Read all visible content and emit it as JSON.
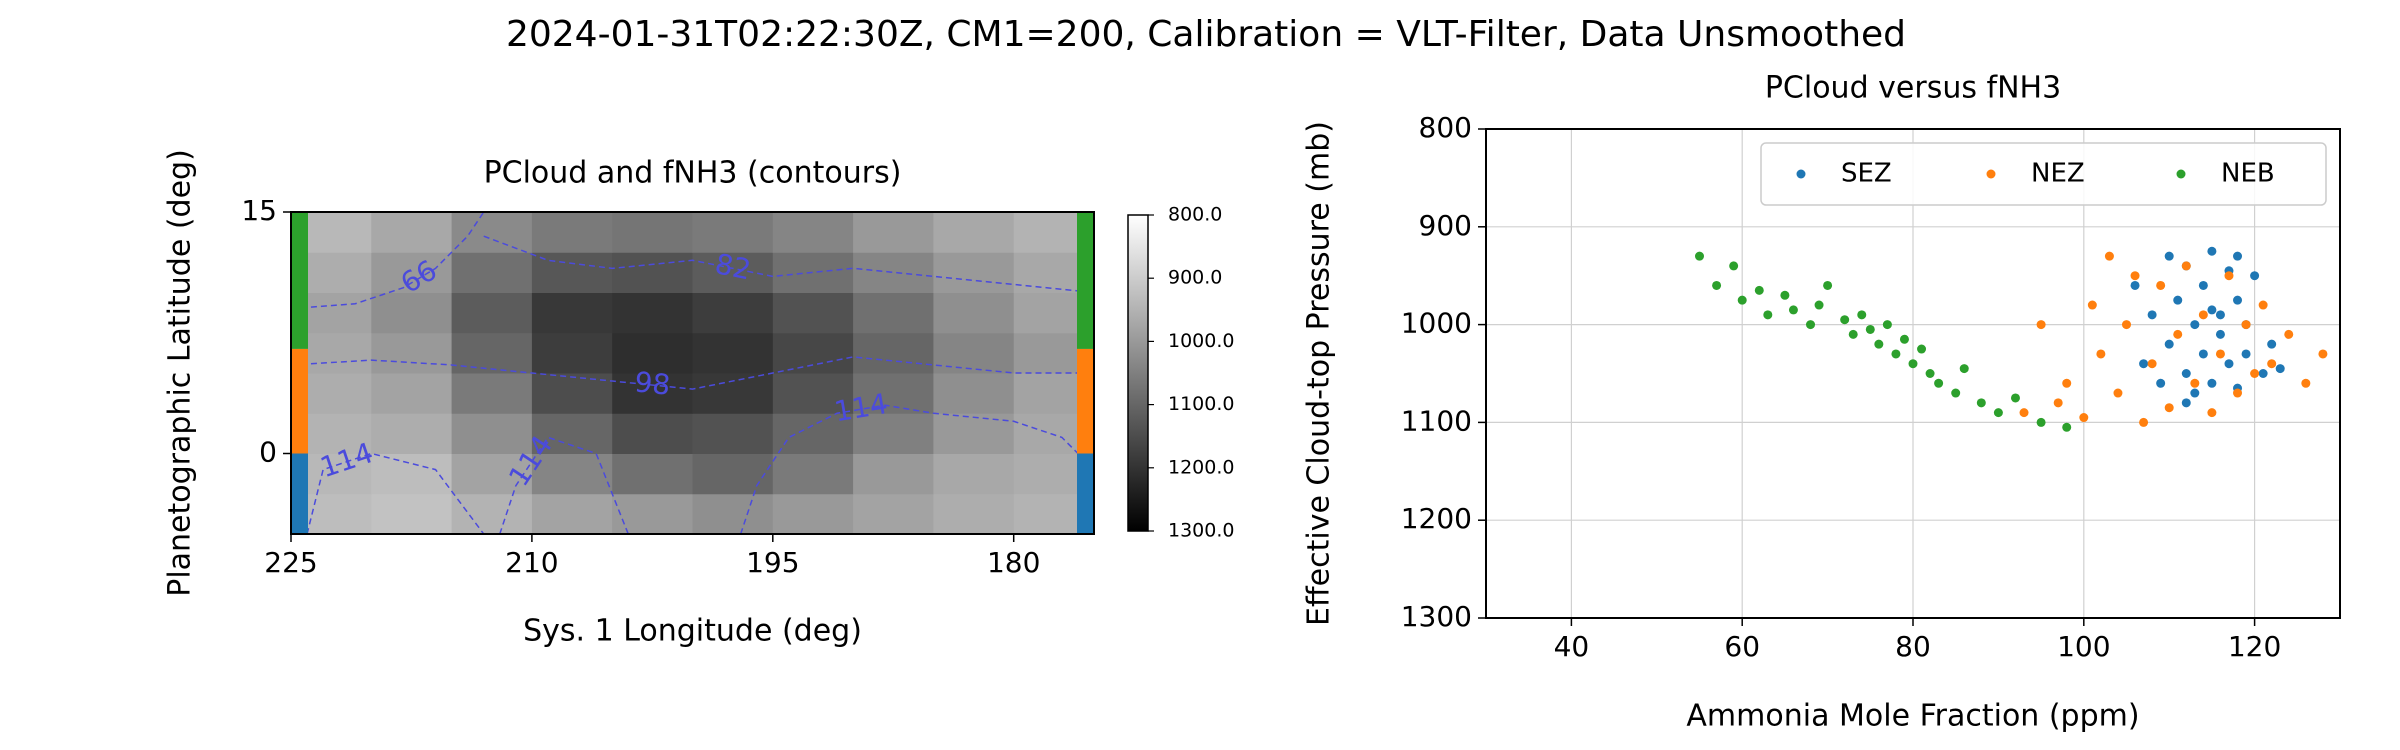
{
  "title": "2024-01-31T02:22:30Z, CM1=200, Calibration = VLT-Filter, Data Unsmoothed",
  "chart_data": [
    {
      "type": "heatmap",
      "title": "PCloud and fNH3 (contours)",
      "x_label": "Sys. 1 Longitude (deg)",
      "y_label": "Planetographic Latitude (deg)",
      "xlim": [
        225,
        175
      ],
      "xticks": [
        225,
        210,
        195,
        180
      ],
      "ylim": [
        -5,
        15
      ],
      "yticks": [
        0,
        15
      ],
      "x": [
        222.5,
        217.5,
        212.5,
        207.5,
        202.5,
        197.5,
        192.5,
        187.5,
        182.5,
        177.5
      ],
      "y": [
        -3.75,
        -1.25,
        1.25,
        3.75,
        6.25,
        8.75,
        11.25,
        13.75
      ],
      "z": [
        [
          930,
          920,
          950,
          980,
          1000,
          1020,
          1000,
          980,
          960,
          950
        ],
        [
          940,
          930,
          980,
          1040,
          1080,
          1100,
          1060,
          1000,
          970,
          960
        ],
        [
          950,
          960,
          1020,
          1100,
          1150,
          1140,
          1100,
          1050,
          1000,
          970
        ],
        [
          960,
          980,
          1060,
          1150,
          1200,
          1190,
          1140,
          1080,
          1020,
          980
        ],
        [
          970,
          1000,
          1100,
          1180,
          1210,
          1200,
          1160,
          1100,
          1040,
          1000
        ],
        [
          980,
          1020,
          1120,
          1190,
          1200,
          1180,
          1140,
          1080,
          1020,
          980
        ],
        [
          960,
          1000,
          1080,
          1130,
          1140,
          1120,
          1080,
          1040,
          1000,
          970
        ],
        [
          940,
          970,
          1030,
          1060,
          1070,
          1060,
          1040,
          1000,
          970,
          950
        ]
      ],
      "clim": [
        800,
        1300
      ],
      "cticks": [
        {
          "value": 800,
          "label": "800.0"
        },
        {
          "value": 900,
          "label": "900.0"
        },
        {
          "value": 1000,
          "label": "1000.0"
        },
        {
          "value": 1100,
          "label": "1100.0"
        },
        {
          "value": 1200,
          "label": "1200.0"
        },
        {
          "value": 1300,
          "label": "1300.0"
        }
      ],
      "contour_color": "#4b4bdc",
      "contours": [
        {
          "level": 66,
          "x": [
            225,
            221,
            218,
            216,
            214,
            213
          ],
          "y": [
            9,
            9.3,
            10.3,
            11.5,
            13.5,
            15
          ]
        },
        {
          "level": 82,
          "x": [
            213,
            209,
            205,
            200,
            195,
            190,
            185,
            180,
            175
          ],
          "y": [
            13.5,
            12,
            11.5,
            12,
            11,
            11.5,
            11,
            10.5,
            10
          ]
        },
        {
          "level": 98,
          "x": [
            225,
            220,
            215,
            210,
            205,
            200,
            195,
            190,
            185,
            180,
            175
          ],
          "y": [
            5.5,
            5.8,
            5.5,
            5,
            4.5,
            4,
            5,
            6,
            5.5,
            5,
            5
          ]
        },
        {
          "level": 114,
          "x": [
            224,
            223,
            220,
            216,
            213
          ],
          "y": [
            -5,
            -1,
            0,
            -1,
            -5
          ]
        },
        {
          "level": 114,
          "x": [
            212,
            211,
            209,
            206,
            204
          ],
          "y": [
            -5,
            -2,
            1,
            0,
            -5
          ]
        },
        {
          "level": 114,
          "x": [
            197,
            196,
            194,
            191,
            188,
            185,
            180,
            177,
            175
          ],
          "y": [
            -5,
            -2,
            1,
            2.5,
            3,
            2.5,
            2,
            1,
            -1
          ]
        }
      ],
      "zones": [
        {
          "color": "#1f77b4",
          "ylim": [
            -5,
            0
          ]
        },
        {
          "color": "#ff7f0e",
          "ylim": [
            0,
            6.5
          ]
        },
        {
          "color": "#2ca02c",
          "ylim": [
            6.5,
            15
          ]
        }
      ]
    },
    {
      "type": "scatter",
      "title": "PCloud versus fNH3",
      "x_label": "Ammonia Mole Fraction (ppm)",
      "y_label": "Effective Cloud-top Pressure (mb)",
      "xlim": [
        30,
        130
      ],
      "xticks": [
        40,
        60,
        80,
        100,
        120
      ],
      "ylim": [
        1300,
        800
      ],
      "yticks": [
        800,
        900,
        1000,
        1100,
        1200,
        1300
      ],
      "grid": true,
      "legend": "upper right",
      "series": [
        {
          "name": "SEZ",
          "color": "#1f77b4",
          "x": [
            106,
            107,
            108,
            109,
            110,
            110,
            111,
            112,
            112,
            113,
            113,
            114,
            114,
            115,
            115,
            116,
            116,
            117,
            117,
            118,
            118,
            119,
            119,
            120,
            121,
            122,
            123,
            112,
            115,
            118
          ],
          "values": [
            960,
            1040,
            990,
            1060,
            930,
            1020,
            975,
            1050,
            940,
            1000,
            1070,
            960,
            1030,
            925,
            1060,
            990,
            1010,
            945,
            1040,
            975,
            1065,
            1000,
            1030,
            950,
            1050,
            1020,
            1045,
            1080,
            985,
            930
          ]
        },
        {
          "name": "NEZ",
          "color": "#ff7f0e",
          "x": [
            93,
            95,
            97,
            98,
            100,
            101,
            102,
            103,
            104,
            105,
            106,
            107,
            108,
            109,
            110,
            111,
            112,
            113,
            114,
            115,
            116,
            117,
            118,
            119,
            120,
            121,
            122,
            124,
            126,
            128
          ],
          "values": [
            1090,
            1000,
            1080,
            1060,
            1095,
            980,
            1030,
            930,
            1070,
            1000,
            950,
            1100,
            1040,
            960,
            1085,
            1010,
            940,
            1060,
            990,
            1090,
            1030,
            950,
            1070,
            1000,
            1050,
            980,
            1040,
            1010,
            1060,
            1030
          ]
        },
        {
          "name": "NEB",
          "color": "#2ca02c",
          "x": [
            55,
            57,
            59,
            60,
            62,
            63,
            65,
            66,
            68,
            69,
            70,
            72,
            73,
            74,
            75,
            76,
            77,
            78,
            79,
            80,
            81,
            82,
            83,
            85,
            86,
            88,
            90,
            92,
            95,
            98
          ],
          "values": [
            930,
            960,
            940,
            975,
            965,
            990,
            970,
            985,
            1000,
            980,
            960,
            995,
            1010,
            990,
            1005,
            1020,
            1000,
            1030,
            1015,
            1040,
            1025,
            1050,
            1060,
            1070,
            1045,
            1080,
            1090,
            1075,
            1100,
            1105
          ]
        }
      ]
    }
  ]
}
